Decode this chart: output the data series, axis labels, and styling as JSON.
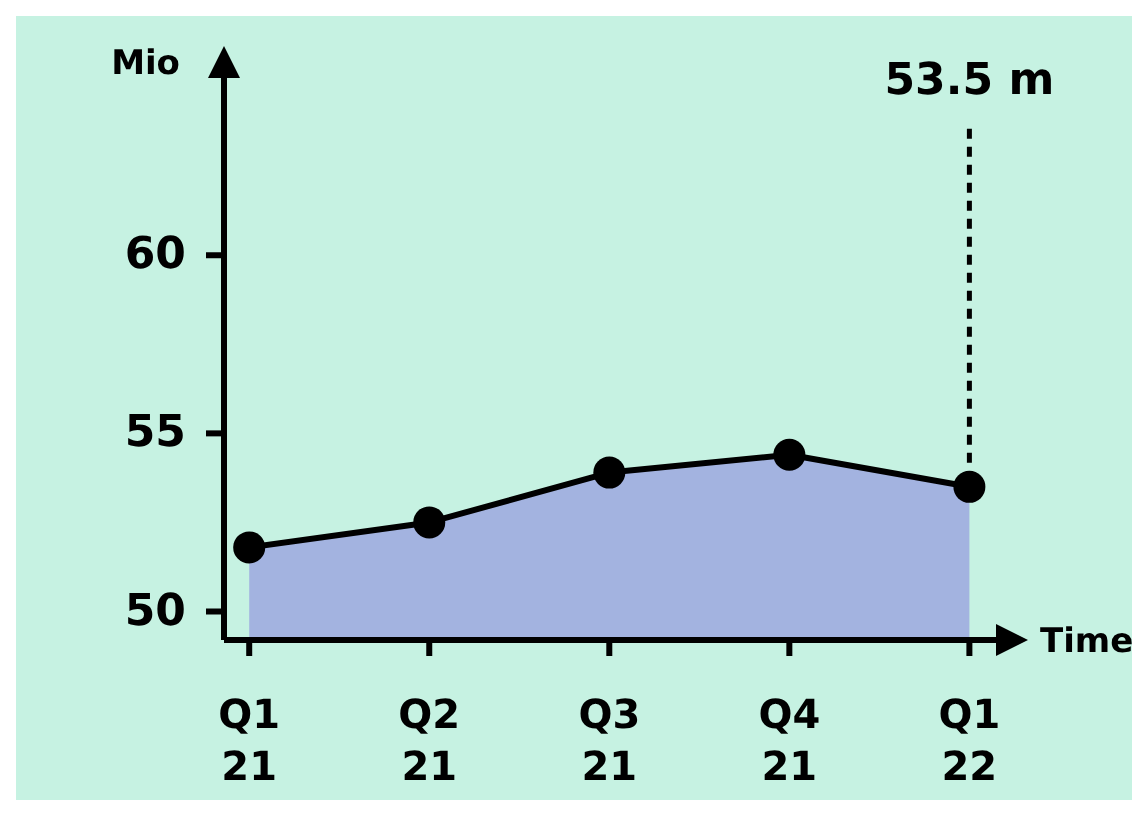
{
  "chart_data": {
    "type": "area",
    "ylabel": "Mio",
    "xlabel": "Time",
    "categories": [
      "Q1 21",
      "Q2 21",
      "Q3 21",
      "Q4 21",
      "Q1 22"
    ],
    "series": [
      {
        "color": "#a3b3e0",
        "values": [
          51.8,
          52.5,
          53.9,
          54.4,
          53.5
        ]
      }
    ],
    "ylim": [
      49.2,
      65.2
    ],
    "yticks": [
      50,
      55,
      60
    ],
    "marker": "circle",
    "line_style": "solid",
    "annotations": [
      "53.5 m"
    ]
  }
}
